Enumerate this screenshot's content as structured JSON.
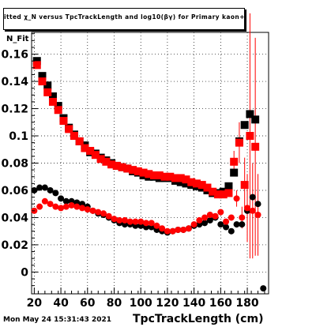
{
  "chart_data": {
    "type": "scatter",
    "title": "itted  χ_N  versus TpcTrackLength and log10(βγ) for Primary kaon+",
    "xlabel": "TpcTrackLength (cm)",
    "ylabel": "N_Fit",
    "xlim": [
      18,
      196
    ],
    "ylim": [
      -0.016,
      0.176
    ],
    "xticks": [
      20,
      40,
      60,
      80,
      100,
      120,
      140,
      160,
      180
    ],
    "yticks": [
      0,
      0.02,
      0.04,
      0.06,
      0.08,
      0.1,
      0.12,
      0.14,
      0.16
    ],
    "ytick_labels": [
      "0",
      "0.02",
      "0.04",
      "0.06",
      "0.08",
      "0.1",
      "0.12",
      "0.14",
      "0.16"
    ],
    "grid": true,
    "series": [
      {
        "color": "#000000",
        "marker": "square",
        "x": [
          22,
          26,
          30,
          34,
          38,
          42,
          46,
          50,
          54,
          58,
          62,
          66,
          70,
          74,
          78,
          82,
          86,
          90,
          94,
          98,
          102,
          106,
          110,
          114,
          118,
          122,
          126,
          130,
          134,
          138,
          142,
          146,
          150,
          154,
          158,
          162,
          166,
          170,
          174,
          178,
          182,
          186
        ],
        "y": [
          0.155,
          0.144,
          0.137,
          0.129,
          0.122,
          0.113,
          0.106,
          0.101,
          0.096,
          0.093,
          0.088,
          0.087,
          0.084,
          0.082,
          0.08,
          0.078,
          0.077,
          0.076,
          0.074,
          0.073,
          0.071,
          0.07,
          0.07,
          0.069,
          0.069,
          0.069,
          0.067,
          0.066,
          0.065,
          0.064,
          0.063,
          0.062,
          0.06,
          0.058,
          0.058,
          0.059,
          0.063,
          0.073,
          0.096,
          0.108,
          0.116,
          0.112
        ]
      },
      {
        "color": "#ff0000",
        "marker": "square",
        "x": [
          22,
          26,
          30,
          34,
          38,
          42,
          46,
          50,
          54,
          58,
          62,
          66,
          70,
          74,
          78,
          82,
          86,
          90,
          94,
          98,
          102,
          106,
          110,
          114,
          118,
          122,
          126,
          130,
          134,
          138,
          142,
          146,
          150,
          154,
          158,
          162,
          166,
          170,
          174,
          178,
          182,
          186
        ],
        "y": [
          0.152,
          0.14,
          0.132,
          0.125,
          0.119,
          0.111,
          0.105,
          0.1,
          0.096,
          0.091,
          0.089,
          0.086,
          0.083,
          0.081,
          0.079,
          0.078,
          0.077,
          0.076,
          0.075,
          0.074,
          0.073,
          0.072,
          0.071,
          0.071,
          0.07,
          0.07,
          0.069,
          0.069,
          0.068,
          0.066,
          0.065,
          0.064,
          0.062,
          0.059,
          0.057,
          0.057,
          0.058,
          0.081,
          0.095,
          0.064,
          0.1,
          0.092
        ],
        "err": [
          0,
          0,
          0,
          0,
          0,
          0,
          0,
          0,
          0,
          0,
          0,
          0,
          0,
          0,
          0,
          0,
          0,
          0,
          0,
          0,
          0,
          0,
          0,
          0,
          0,
          0,
          0,
          0,
          0,
          0,
          0,
          0,
          0,
          0,
          0,
          0,
          0,
          0.008,
          0.015,
          0.02,
          0.09,
          0.08
        ]
      },
      {
        "color": "#000000",
        "marker": "circle",
        "x": [
          20,
          24,
          28,
          32,
          36,
          40,
          44,
          48,
          52,
          56,
          60,
          64,
          68,
          72,
          76,
          80,
          84,
          88,
          92,
          96,
          100,
          104,
          108,
          112,
          116,
          120,
          124,
          128,
          132,
          136,
          140,
          144,
          148,
          152,
          156,
          160,
          164,
          168,
          172,
          176,
          180,
          184,
          188,
          192
        ],
        "y": [
          0.06,
          0.062,
          0.062,
          0.06,
          0.058,
          0.054,
          0.052,
          0.052,
          0.051,
          0.05,
          0.048,
          0.045,
          0.043,
          0.042,
          0.04,
          0.038,
          0.036,
          0.035,
          0.035,
          0.034,
          0.034,
          0.033,
          0.033,
          0.031,
          0.03,
          0.029,
          0.03,
          0.031,
          0.031,
          0.032,
          0.034,
          0.035,
          0.036,
          0.038,
          0.04,
          0.035,
          0.033,
          0.03,
          0.035,
          0.035,
          0.045,
          0.055,
          0.05,
          -0.012
        ]
      },
      {
        "color": "#ff0000",
        "marker": "circle",
        "x": [
          20,
          24,
          28,
          32,
          36,
          40,
          44,
          48,
          52,
          56,
          60,
          64,
          68,
          72,
          76,
          80,
          84,
          88,
          92,
          96,
          100,
          104,
          108,
          112,
          116,
          120,
          124,
          128,
          132,
          136,
          140,
          144,
          148,
          152,
          156,
          160,
          164,
          168,
          172,
          176,
          180,
          184,
          188
        ],
        "y": [
          0.045,
          0.048,
          0.052,
          0.05,
          0.048,
          0.047,
          0.048,
          0.049,
          0.048,
          0.047,
          0.046,
          0.045,
          0.044,
          0.043,
          0.041,
          0.039,
          0.038,
          0.038,
          0.037,
          0.037,
          0.037,
          0.036,
          0.036,
          0.034,
          0.032,
          0.03,
          0.03,
          0.031,
          0.031,
          0.032,
          0.035,
          0.038,
          0.04,
          0.042,
          0.041,
          0.044,
          0.037,
          0.04,
          0.054,
          0.04,
          0.047,
          0.045,
          0.042
        ],
        "err": [
          0,
          0,
          0,
          0,
          0,
          0,
          0,
          0,
          0,
          0,
          0,
          0,
          0,
          0,
          0,
          0,
          0,
          0,
          0,
          0,
          0,
          0,
          0,
          0,
          0,
          0,
          0,
          0,
          0,
          0,
          0,
          0,
          0,
          0,
          0,
          0,
          0,
          0,
          0.006,
          0.008,
          0.025,
          0.035,
          0.03
        ]
      }
    ]
  },
  "footer": {
    "datestamp": "Mon May 24 15:31:43 2021"
  }
}
